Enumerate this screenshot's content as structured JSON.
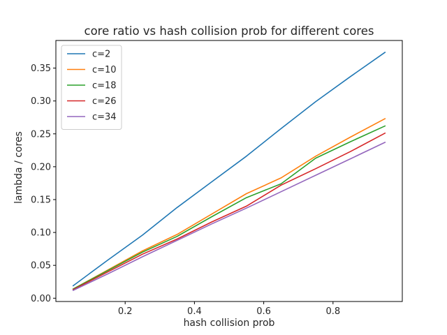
{
  "chart_data": {
    "type": "line",
    "title": "core ratio vs hash collision prob for different cores",
    "xlabel": "hash collision prob",
    "ylabel": "lambda / cores",
    "xlim": [
      0.0,
      1.0
    ],
    "ylim": [
      -0.005,
      0.392
    ],
    "xticks": [
      0.2,
      0.4,
      0.6,
      0.8
    ],
    "xtick_labels": [
      "0.2",
      "0.4",
      "0.6",
      "0.8"
    ],
    "yticks": [
      0.0,
      0.05,
      0.1,
      0.15,
      0.2,
      0.25,
      0.3,
      0.35
    ],
    "ytick_labels": [
      "0.00",
      "0.05",
      "0.10",
      "0.15",
      "0.20",
      "0.25",
      "0.30",
      "0.35"
    ],
    "grid": false,
    "legend_position": "top-left",
    "x": [
      0.05,
      0.15,
      0.25,
      0.35,
      0.45,
      0.55,
      0.65,
      0.75,
      0.85,
      0.95
    ],
    "series": [
      {
        "name": "c=2",
        "color": "#1f77b4",
        "values": [
          0.019,
          0.058,
          0.096,
          0.138,
          0.177,
          0.216,
          0.258,
          0.299,
          0.337,
          0.374
        ]
      },
      {
        "name": "c=10",
        "color": "#ff7f0e",
        "values": [
          0.014,
          0.043,
          0.072,
          0.097,
          0.128,
          0.159,
          0.183,
          0.216,
          0.245,
          0.273
        ]
      },
      {
        "name": "c=18",
        "color": "#2ca02c",
        "values": [
          0.014,
          0.042,
          0.07,
          0.094,
          0.124,
          0.153,
          0.174,
          0.213,
          0.238,
          0.262
        ]
      },
      {
        "name": "c=26",
        "color": "#d62728",
        "values": [
          0.013,
          0.04,
          0.067,
          0.09,
          0.116,
          0.14,
          0.172,
          0.197,
          0.223,
          0.251
        ]
      },
      {
        "name": "c=34",
        "color": "#9467bd",
        "values": [
          0.012,
          0.037,
          0.063,
          0.088,
          0.113,
          0.137,
          0.162,
          0.187,
          0.212,
          0.237
        ]
      }
    ]
  }
}
